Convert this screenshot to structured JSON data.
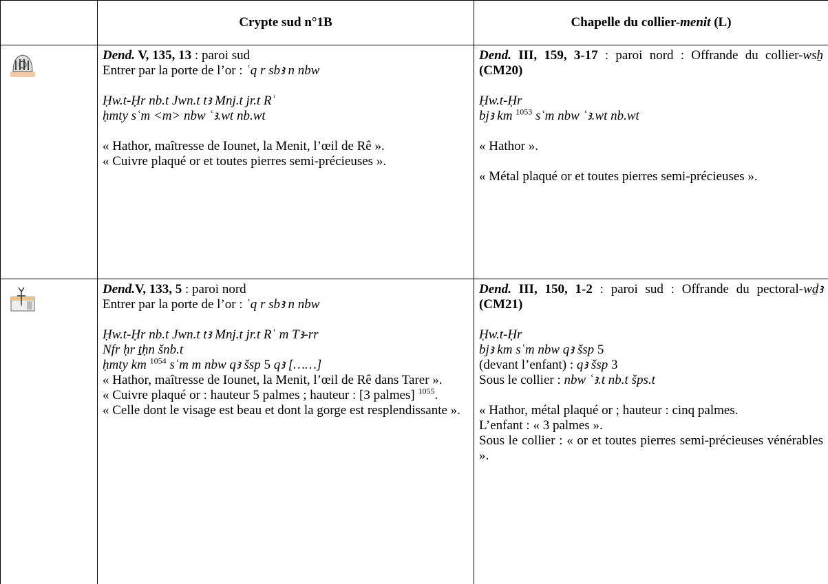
{
  "table": {
    "header": [
      [
        "Crypte sud n°1B"
      ],
      [
        "Chapelle du collier-",
        "menit",
        " (L)"
      ]
    ],
    "rows": [
      [
        [
          [
            "Dend.",
            " V, 135, 13",
            " : paroi sud"
          ],
          [
            "Entrer par la porte de l’or : ",
            "ʿq r sbꜣ n nbw"
          ],
          [
            "Ḥw.t-Ḥr nb.t Jwn.t tꜣ Mnj.t jr.t Rʿ"
          ],
          [
            "ḥmty sʿm <m> nbw ʿꜣ.wt nb.wt"
          ],
          [
            "« Hathor, maîtresse de Iounet, la Menit, l’œil de Rê »."
          ],
          [
            "« Cuivre plaqué or et toutes pierres semi-précieuses »."
          ]
        ],
        [
          [
            "Dend.",
            " III, 159, 3-17",
            " : paroi nord : Offrande du collier-",
            "wsẖ",
            " (CM20)"
          ],
          [
            "Ḥw.t-Ḥr"
          ],
          [
            "bjꜣ km ",
            "1053",
            " sʿm nbw ʿꜣ.wt nb.wt"
          ],
          [
            "« Hathor »."
          ],
          [
            "« Métal plaqué or et toutes pierres semi-précieuses »."
          ]
        ]
      ],
      [
        [
          [
            "Dend.",
            "V, 133, 5",
            " : paroi nord"
          ],
          [
            "Entrer par la porte de l’or : ",
            "ʿq r sbꜣ n nbw"
          ],
          [
            "Ḥw.t-Ḥr nb.t Jwn.t tꜣ Mnj.t jr.t Rʿ m Tꜣ-rr"
          ],
          [
            "Nfr ḥr ṯḥn šnb.t"
          ],
          [
            "ḥmty km ",
            "1054",
            " sʿm m nbw qꜣ šsp ",
            "5",
            " qꜣ [……]"
          ],
          [
            "« Hathor, maîtresse de Iounet, la Menit, l’œil de Rê dans Tarer »."
          ],
          [
            "« Cuivre plaqué or : hauteur 5 palmes ; hauteur : [3 palmes] ",
            "1055",
            "."
          ],
          [
            "« Celle dont le visage est beau et dont la gorge est resplendissante »."
          ]
        ],
        [
          [
            "Dend.",
            " III, 150, 1-2",
            " : paroi sud : Offrande du pectoral-",
            "wḏꜣ",
            " (CM21)"
          ],
          [
            "Ḥw.t-Ḥr"
          ],
          [
            "bjꜣ km sʿm nbw qꜣ šsp ",
            "5"
          ],
          [
            "(devant l’enfant) : ",
            "qꜣ šsp",
            " 3"
          ],
          [
            "Sous le collier : ",
            "nbw ʿꜣ.t nb.t šps.t"
          ],
          [
            "« Hathor, métal plaqué or ; hauteur : cinq palmes."
          ],
          [
            "L’enfant : « 3 palmes »."
          ],
          [
            "Sous le collier : « or et toutes pierres semi-précieuses vénérables »."
          ]
        ]
      ]
    ]
  }
}
